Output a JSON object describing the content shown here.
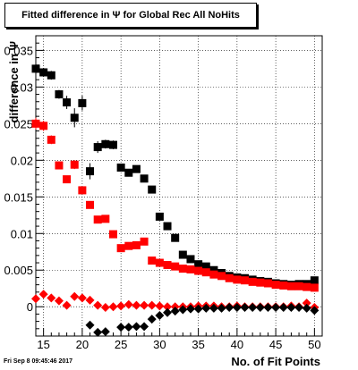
{
  "chart_data": {
    "type": "scatter",
    "title": "Fitted difference in Ψ  for Global Rec All NoHits",
    "xlabel": "No. of Fit Points",
    "ylabel": "difference in Ψ",
    "xlim": [
      14,
      51
    ],
    "ylim": [
      -0.004,
      0.037
    ],
    "xticks": [
      15,
      20,
      25,
      30,
      35,
      40,
      45,
      50
    ],
    "yticks": [
      {
        "v": 0,
        "label": "0"
      },
      {
        "v": 0.005,
        "label": "0.005"
      },
      {
        "v": 0.01,
        "label": "0.01"
      },
      {
        "v": 0.015,
        "label": "0.015"
      },
      {
        "v": 0.02,
        "label": "0.02"
      },
      {
        "v": 0.025,
        "label": "0.025"
      },
      {
        "v": 0.03,
        "label": "0.03"
      },
      {
        "v": 0.035,
        "label": "0.035"
      }
    ],
    "grid": true,
    "series": [
      {
        "color": "#000000",
        "marker": "square",
        "x": [
          14,
          15,
          16,
          17,
          18,
          19,
          20,
          21,
          22,
          23,
          24,
          25,
          26,
          27,
          28,
          29,
          30,
          31,
          32,
          33,
          34,
          35,
          36,
          37,
          38,
          39,
          40,
          41,
          42,
          43,
          44,
          45,
          46,
          47,
          48,
          49,
          50
        ],
        "y": [
          0.0325,
          0.032,
          0.0316,
          0.029,
          0.0279,
          0.0258,
          0.0278,
          0.0185,
          0.0218,
          0.0222,
          0.0221,
          0.019,
          0.0183,
          0.0188,
          0.0175,
          0.016,
          0.0123,
          0.011,
          0.0094,
          0.0071,
          0.0065,
          0.0058,
          0.0055,
          0.005,
          0.0046,
          0.0042,
          0.004,
          0.0039,
          0.0037,
          0.0035,
          0.0034,
          0.0032,
          0.0031,
          0.003,
          0.0031,
          0.0031,
          0.0036
        ],
        "err": [
          0.0008,
          0.0006,
          0.0006,
          0.0006,
          0.0009,
          0.0013,
          0.001,
          0.0011,
          0.0008,
          0.0006,
          0.0006,
          0.0005,
          0.0004,
          0.0004,
          0.0004,
          0.0004,
          0.0003,
          0.0003,
          0.0003,
          0.0002,
          0.0002,
          0.0002,
          0.0002,
          0.0002,
          0.0002,
          0.0002,
          0.0002,
          0.0002,
          0.0002,
          0.0002,
          0.0002,
          0.0002,
          0.0002,
          0.0002,
          0.0002,
          0.0002,
          0.0002
        ]
      },
      {
        "color": "#ff0000",
        "marker": "square",
        "x": [
          14,
          15,
          16,
          17,
          18,
          19,
          20,
          21,
          22,
          23,
          24,
          25,
          26,
          27,
          28,
          29,
          30,
          31,
          32,
          33,
          34,
          35,
          36,
          37,
          38,
          39,
          40,
          41,
          42,
          43,
          44,
          45,
          46,
          47,
          48,
          49,
          50
        ],
        "y": [
          0.025,
          0.0247,
          0.0228,
          0.0193,
          0.0174,
          0.0194,
          0.0159,
          0.0139,
          0.0119,
          0.012,
          0.0099,
          0.008,
          0.0083,
          0.0084,
          0.0089,
          0.0063,
          0.006,
          0.0057,
          0.0055,
          0.0052,
          0.0051,
          0.0049,
          0.0047,
          0.0044,
          0.0042,
          0.0039,
          0.0037,
          0.0036,
          0.0034,
          0.0033,
          0.0032,
          0.003,
          0.0029,
          0.0028,
          0.0028,
          0.0027,
          0.0026
        ],
        "err": [
          0.0008,
          0.0007,
          0.0006,
          0.0005,
          0.0005,
          0.0006,
          0.0005,
          0.0004,
          0.0004,
          0.0004,
          0.0003,
          0.0003,
          0.0003,
          0.0003,
          0.0003,
          0.0002,
          0.0002,
          0.0002,
          0.0002,
          0.0002,
          0.0002,
          0.0002,
          0.0002,
          0.0002,
          0.0002,
          0.0002,
          0.0002,
          0.0002,
          0.0002,
          0.0002,
          0.0002,
          0.0002,
          0.0002,
          0.0002,
          0.0002,
          0.0002,
          0.0002
        ]
      },
      {
        "color": "#ff0000",
        "marker": "diamond",
        "x": [
          14,
          15,
          16,
          17,
          18,
          19,
          20,
          21,
          22,
          23,
          24,
          25,
          26,
          27,
          28,
          29,
          30,
          31,
          32,
          33,
          34,
          35,
          36,
          37,
          38,
          39,
          40,
          41,
          42,
          43,
          44,
          45,
          46,
          47,
          48,
          49,
          50
        ],
        "y": [
          0.0011,
          0.0017,
          0.0012,
          0.0008,
          0.0002,
          0.0014,
          0.0012,
          0.0009,
          0.0002,
          -0.0001,
          0,
          0.0001,
          0.0003,
          0.0002,
          0.0002,
          0.0002,
          0.0001,
          0,
          0,
          0,
          0,
          0.0001,
          0.0001,
          0.0001,
          0,
          0,
          0.0001,
          0,
          0,
          0,
          0,
          0,
          0,
          0.0001,
          0,
          0.0005,
          -0.0001
        ],
        "err": [
          0.0003,
          0.0003,
          0.0003,
          0.0002,
          0.0002,
          0.0002,
          0.0002,
          0.0002,
          0.0002,
          0.0001,
          0.0001,
          0.0001,
          0.0001,
          0.0001,
          0.0001,
          0.0001,
          0.0001,
          0.0001,
          0.0001,
          0.0001,
          0.0001,
          0.0001,
          0.0001,
          0.0001,
          0.0001,
          0.0001,
          0.0001,
          0.0001,
          0.0001,
          0.0001,
          0.0001,
          0.0001,
          0.0001,
          0.0001,
          0.0001,
          0.0001,
          0.0001
        ]
      },
      {
        "color": "#000000",
        "marker": "diamond",
        "x": [
          21,
          22,
          23,
          25,
          26,
          27,
          28,
          29,
          30,
          31,
          32,
          33,
          34,
          35,
          36,
          37,
          38,
          39,
          40,
          41,
          42,
          43,
          44,
          45,
          46,
          47,
          48,
          49,
          50
        ],
        "y": [
          -0.0025,
          -0.0035,
          -0.0034,
          -0.0028,
          -0.0028,
          -0.0027,
          -0.0027,
          -0.0017,
          -0.0012,
          -0.0008,
          -0.0006,
          -0.0004,
          -0.0003,
          -0.0003,
          -0.0002,
          -0.0002,
          -0.0002,
          -0.0001,
          -0.0001,
          -0.0001,
          -0.0001,
          -0.0001,
          -0.0001,
          -0.0001,
          -0.0001,
          -0.0001,
          -0.0001,
          -0.0002,
          -0.0005
        ],
        "err": [
          0.0003,
          0.0003,
          0.0003,
          0.0002,
          0.0002,
          0.0002,
          0.0002,
          0.0002,
          0.0002,
          0.0002,
          0.0001,
          0.0001,
          0.0001,
          0.0001,
          0.0001,
          0.0001,
          0.0001,
          0.0001,
          0.0001,
          0.0001,
          0.0001,
          0.0001,
          0.0001,
          0.0001,
          0.0001,
          0.0001,
          0.0001,
          0.0001,
          0.0001
        ]
      }
    ]
  },
  "footer": {
    "timestamp": "Fri Sep  8 09:45:46 2017"
  }
}
